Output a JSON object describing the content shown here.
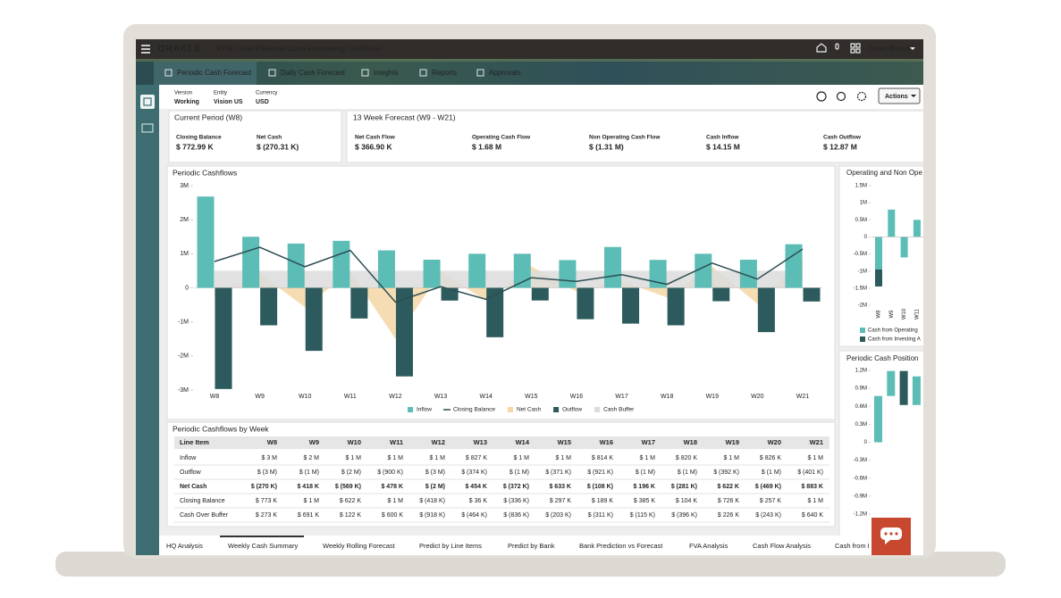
{
  "header": {
    "brand": "ORACLE",
    "app_title": "EPM Cloud Predictive Cash Forecasting: CashFlow",
    "user": "Casey Brown"
  },
  "nav_tabs": [
    "Periodic Cash Forecast",
    "Daily Cash Forecast",
    "Insights",
    "Reports",
    "Approvals"
  ],
  "pov": [
    {
      "label": "Version",
      "value": "Working"
    },
    {
      "label": "Entity",
      "value": "Vision US"
    },
    {
      "label": "Currency",
      "value": "USD"
    }
  ],
  "actions_button": "Actions",
  "current_period": {
    "title": "Current Period (W8)",
    "kpis": [
      {
        "label": "Closing Balance",
        "value": "$ 772.99 K"
      },
      {
        "label": "Net Cash",
        "value": "$ (270.31 K)"
      }
    ]
  },
  "forecast": {
    "title": "13 Week Forecast (W9 - W21)",
    "kpis": [
      {
        "label": "Net Cash Flow",
        "value": "$ 366.90 K"
      },
      {
        "label": "Operating Cash Flow",
        "value": "$ 1.68 M"
      },
      {
        "label": "Non Operating Cash Flow",
        "value": "$ (1.31 M)"
      },
      {
        "label": "Cash Inflow",
        "value": "$ 14.15 M"
      },
      {
        "label": "Cash Outflow",
        "value": "$ 12.87 M"
      }
    ]
  },
  "main_chart": {
    "type": "bar",
    "title": "Periodic Cashflows",
    "categories": [
      "W8",
      "W9",
      "W10",
      "W11",
      "W12",
      "W13",
      "W14",
      "W15",
      "W16",
      "W17",
      "W18",
      "W19",
      "W20",
      "W21"
    ],
    "ylim": [
      -3,
      3
    ],
    "yticks": [
      {
        "value": 3,
        "label": "3M"
      },
      {
        "value": 2,
        "label": "2M"
      },
      {
        "value": 1,
        "label": "1M"
      },
      0,
      {
        "value": -1,
        "label": "-1M"
      },
      {
        "value": -2,
        "label": "-2M"
      },
      {
        "value": -3,
        "label": "-3M"
      }
    ],
    "series": [
      {
        "name": "Inflow",
        "type": "bar",
        "color": "#5bbdb5",
        "values": [
          2.68,
          1.5,
          1.3,
          1.38,
          1.1,
          0.827,
          1.0,
          1.0,
          0.814,
          1.2,
          0.82,
          1.0,
          0.826,
          1.28
        ]
      },
      {
        "name": "Closing Balance",
        "type": "line",
        "color": "#2e4e54",
        "values": [
          0.773,
          1.19,
          0.622,
          1.1,
          -0.418,
          0.036,
          -0.336,
          0.297,
          0.189,
          0.385,
          0.104,
          0.726,
          0.257,
          1.14
        ]
      },
      {
        "name": "Net Cash",
        "type": "area",
        "color": "#f5d6a6",
        "values": [
          -0.27,
          0.418,
          -0.569,
          0.478,
          -1.5,
          0.454,
          -0.372,
          0.633,
          -0.108,
          0.196,
          -0.281,
          0.622,
          -0.469,
          0.883
        ]
      },
      {
        "name": "Outflow",
        "type": "bar",
        "color": "#2d5a5c",
        "values": [
          -2.97,
          -1.1,
          -1.85,
          -0.9,
          -2.6,
          -0.374,
          -1.45,
          -0.371,
          -0.921,
          -1.05,
          -1.1,
          -0.392,
          -1.3,
          -0.401
        ]
      },
      {
        "name": "Cash Buffer",
        "type": "area",
        "color": "#dcdcdc",
        "values": [
          0.5,
          0.5,
          0.5,
          0.5,
          0.5,
          0.5,
          0.5,
          0.5,
          0.5,
          0.5,
          0.5,
          0.5,
          0.5,
          0.5
        ]
      }
    ]
  },
  "operating_chart": {
    "type": "stacked_bar",
    "title": "Operating and Non Ope",
    "categories": [
      "W8",
      "W9",
      "W10",
      "W11"
    ],
    "ylim": [
      -2,
      1.5
    ],
    "yticks": [
      {
        "value": 1.5,
        "label": "1.5M"
      },
      {
        "value": 1,
        "label": "1M"
      },
      {
        "value": 0.5,
        "label": "0.5M"
      },
      0,
      {
        "value": -0.5,
        "label": "-0.5M"
      },
      {
        "value": -1,
        "label": "-1M"
      },
      {
        "value": -1.5,
        "label": "-1.5M"
      },
      {
        "value": -2,
        "label": "-2M"
      }
    ],
    "series": [
      {
        "name": "Cash from Operating",
        "color": "#5bbdb5",
        "values": [
          -0.95,
          0.8,
          -0.6,
          0.5
        ]
      },
      {
        "name": "Cash from Investing A",
        "color": "#2d5a5c",
        "values": [
          -0.5,
          null,
          null,
          null
        ]
      }
    ]
  },
  "position_chart": {
    "type": "waterfall",
    "title": "Periodic Cash Position",
    "ylim": [
      -1.2,
      1.2
    ],
    "yticks": [
      {
        "value": 1.2,
        "label": "1.2M"
      },
      {
        "value": 0.9,
        "label": "0.9M"
      },
      {
        "value": 0.6,
        "label": "0.6M"
      },
      {
        "value": 0.3,
        "label": "0.3M"
      },
      0,
      {
        "value": -0.3,
        "label": "-0.3M"
      },
      {
        "value": -0.6,
        "label": "-0.6M"
      },
      {
        "value": -0.9,
        "label": "-0.9M"
      },
      {
        "value": -1.2,
        "label": "-1.2M"
      }
    ],
    "color": "#5bbdb5",
    "decrease_color": "#2d5a5c",
    "values": [
      0.773,
      1.19,
      0.622,
      1.1
    ]
  },
  "table": {
    "title": "Periodic Cashflows by Week",
    "columns": [
      "Line Item",
      "W8",
      "W9",
      "W10",
      "W11",
      "W12",
      "W13",
      "W14",
      "W15",
      "W16",
      "W17",
      "W18",
      "W19",
      "W20",
      "W21"
    ],
    "rows": [
      [
        "Inflow",
        "$ 3 M",
        "$ 2 M",
        "$ 1 M",
        "$ 1 M",
        "$ 1 M",
        "$ 827 K",
        "$ 1 M",
        "$ 1 M",
        "$ 814 K",
        "$ 1 M",
        "$ 820 K",
        "$ 1 M",
        "$ 826 K",
        "$ 1 M"
      ],
      [
        "Outflow",
        "$ (3 M)",
        "$ (1 M)",
        "$ (2 M)",
        "$ (900 K)",
        "$ (3 M)",
        "$ (374 K)",
        "$ (1 M)",
        "$ (371 K)",
        "$ (921 K)",
        "$ (1 M)",
        "$ (1 M)",
        "$ (392 K)",
        "$ (1 M)",
        "$ (401 K)"
      ],
      [
        "Net Cash",
        "$ (270 K)",
        "$ 418 K",
        "$ (569 K)",
        "$ 478 K",
        "$ (2 M)",
        "$ 454 K",
        "$ (372 K)",
        "$ 633 K",
        "$ (108 K)",
        "$ 196 K",
        "$ (281 K)",
        "$ 622 K",
        "$ (469 K)",
        "$ 883 K"
      ],
      [
        "Closing Balance",
        "$ 773 K",
        "$ 1 M",
        "$ 622 K",
        "$ 1 M",
        "$ (418 K)",
        "$ 36 K",
        "$ (336 K)",
        "$ 297 K",
        "$ 189 K",
        "$ 385 K",
        "$ 104 K",
        "$ 726 K",
        "$ 257 K",
        "$ 1 M"
      ],
      [
        "Cash Over Buffer",
        "$ 273 K",
        "$ 691 K",
        "$ 122 K",
        "$ 600 K",
        "$ (918 K)",
        "$ (464 K)",
        "$ (836 K)",
        "$ (203 K)",
        "$ (311 K)",
        "$ (115 K)",
        "$ (396 K)",
        "$ 226 K",
        "$ (243 K)",
        "$ 640 K"
      ]
    ]
  },
  "bottom_tabs": [
    "HQ Analysis",
    "Weekly Cash Summary",
    "Weekly Rolling Forecast",
    "Predict by Line Items",
    "Predict by Bank",
    "Bank Prediction vs Forecast",
    "FVA Analysis",
    "Cash Flow Analysis",
    "Cash from I"
  ]
}
